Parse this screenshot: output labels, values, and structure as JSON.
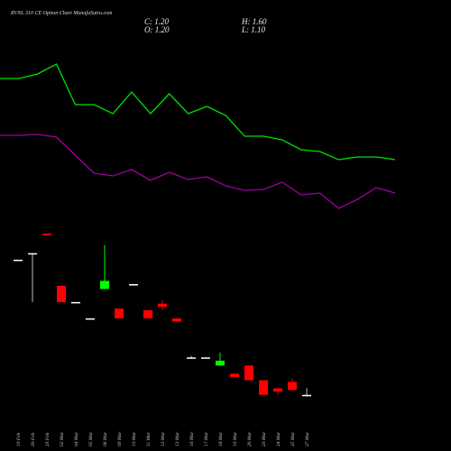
{
  "chart_data": [
    {
      "type": "candlestick",
      "title": "RVNL 310 CE Option Chart MunafaSutra.com",
      "ohlc_labels": [
        "C: 1.20",
        "H: 1.60",
        "O: 1.20",
        "L: 1.10"
      ],
      "categories": [
        "19 Feb",
        "20 Feb",
        "23 Feb",
        "02 Mar",
        "04 Mar",
        "05 Mar",
        "06 Mar",
        "09 Mar",
        "10 Mar",
        "11 Mar",
        "12 Mar",
        "13 Mar",
        "16 Mar",
        "17 Mar",
        "18 Mar",
        "19 Mar",
        "20 Mar",
        "23 Mar",
        "24 Mar",
        "25 Mar",
        "27 Mar"
      ],
      "open": [
        9.5,
        9.9,
        11.1,
        7.9,
        6.9,
        5.9,
        7.7,
        6.5,
        8.0,
        6.4,
        6.8,
        5.9,
        3.5,
        3.5,
        3.0,
        2.5,
        3.0,
        2.1,
        1.6,
        2.0,
        1.2
      ],
      "high": [
        9.5,
        9.9,
        11.1,
        7.9,
        6.9,
        5.9,
        10.4,
        6.5,
        8.0,
        6.4,
        7.0,
        5.9,
        3.6,
        3.5,
        3.8,
        2.5,
        3.0,
        2.1,
        1.6,
        2.2,
        1.6
      ],
      "low": [
        9.5,
        6.9,
        11.0,
        6.9,
        6.9,
        5.9,
        7.7,
        5.9,
        8.0,
        5.9,
        6.4,
        5.7,
        3.4,
        3.5,
        3.0,
        2.3,
        2.1,
        1.2,
        1.2,
        1.5,
        1.1
      ],
      "close": [
        9.5,
        9.9,
        11.0,
        6.9,
        6.9,
        5.9,
        8.2,
        5.9,
        8.0,
        5.9,
        6.6,
        5.7,
        3.5,
        3.5,
        3.3,
        2.3,
        2.1,
        1.2,
        1.4,
        1.5,
        1.2
      ],
      "up_color": "#00ff00",
      "down_color": "#ff0000",
      "flat_color": "#ffffff",
      "ylim": [
        0.8,
        11.6
      ]
    },
    {
      "type": "line",
      "series": [
        {
          "color": "#00e000",
          "values": [
            16.3,
            16.3,
            16.8,
            17.9,
            13.4,
            13.4,
            12.4,
            14.8,
            12.4,
            14.6,
            12.4,
            13.2,
            12.2,
            9.9,
            9.9,
            9.5,
            8.4,
            8.2,
            7.3,
            7.6,
            7.6,
            7.3
          ]
        },
        {
          "color": "#a000a0",
          "values": [
            10.0,
            10.0,
            10.1,
            9.8,
            7.8,
            5.8,
            5.5,
            6.2,
            5.0,
            5.9,
            5.1,
            5.4,
            4.4,
            3.9,
            4.0,
            4.8,
            3.4,
            3.6,
            1.9,
            2.9,
            4.2,
            3.6
          ]
        }
      ],
      "ylim": [
        0,
        25
      ]
    }
  ]
}
